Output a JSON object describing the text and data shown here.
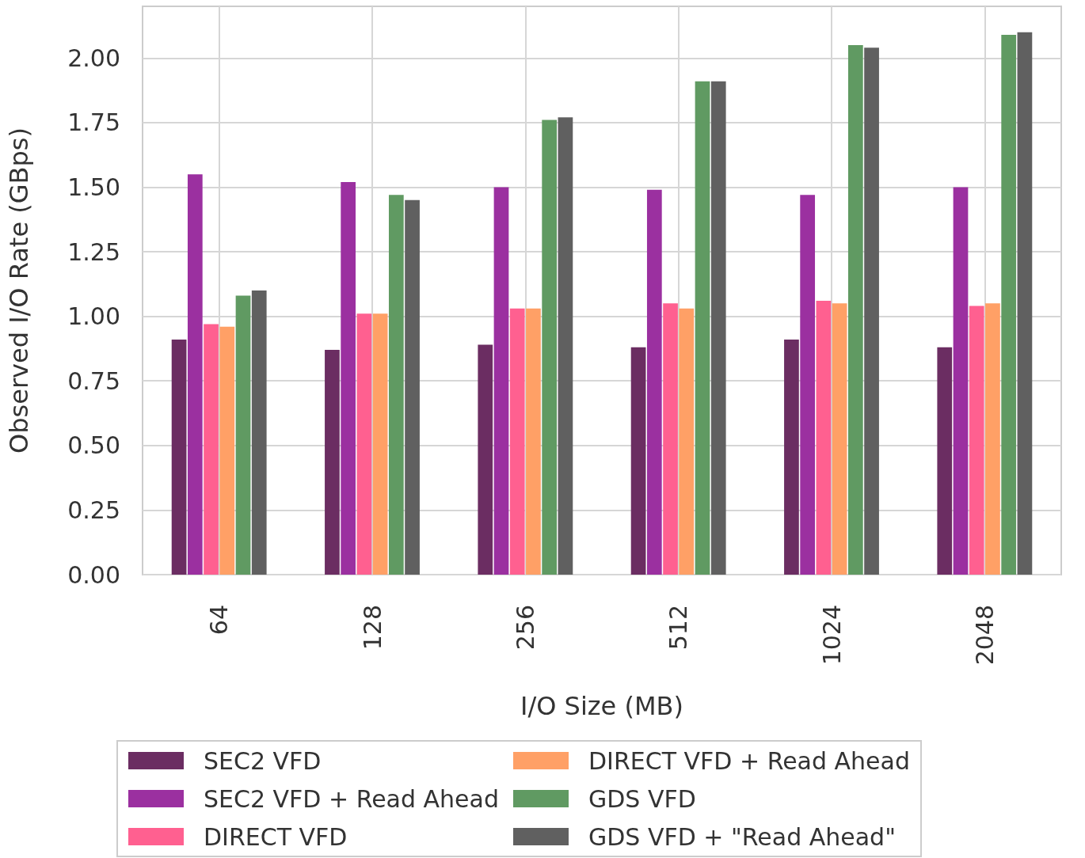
{
  "chart_data": {
    "type": "bar",
    "xlabel": "I/O Size (MB)",
    "ylabel": "Observed I/O Rate (GBps)",
    "categories": [
      "64",
      "128",
      "256",
      "512",
      "1024",
      "2048"
    ],
    "series": [
      {
        "name": "SEC2 VFD",
        "color": "#6b2d62",
        "values": [
          0.91,
          0.87,
          0.89,
          0.88,
          0.91,
          0.88
        ]
      },
      {
        "name": "SEC2 VFD + Read Ahead",
        "color": "#9b30a0",
        "values": [
          1.55,
          1.52,
          1.5,
          1.49,
          1.47,
          1.5
        ]
      },
      {
        "name": "DIRECT VFD",
        "color": "#ff6090",
        "values": [
          0.97,
          1.01,
          1.03,
          1.05,
          1.06,
          1.04
        ]
      },
      {
        "name": "DIRECT VFD + Read Ahead",
        "color": "#ffa066",
        "values": [
          0.96,
          1.01,
          1.03,
          1.03,
          1.05,
          1.05
        ]
      },
      {
        "name": "GDS VFD",
        "color": "#609a62",
        "values": [
          1.08,
          1.47,
          1.76,
          1.91,
          2.05,
          2.09
        ]
      },
      {
        "name": "GDS VFD + \"Read Ahead\"",
        "color": "#606060",
        "values": [
          1.1,
          1.45,
          1.77,
          1.91,
          2.04,
          2.1
        ]
      }
    ],
    "ylim": [
      0,
      2.2
    ],
    "yticks": [
      {
        "value": 0,
        "label": "0.00"
      },
      {
        "value": 0.25,
        "label": "0.25"
      },
      {
        "value": 0.5,
        "label": "0.50"
      },
      {
        "value": 0.75,
        "label": "0.75"
      },
      {
        "value": 1,
        "label": "1.00"
      },
      {
        "value": 1.25,
        "label": "1.25"
      },
      {
        "value": 1.5,
        "label": "1.50"
      },
      {
        "value": 1.75,
        "label": "1.75"
      },
      {
        "value": 2,
        "label": "2.00"
      }
    ],
    "grid": true,
    "legend": "bottom"
  }
}
